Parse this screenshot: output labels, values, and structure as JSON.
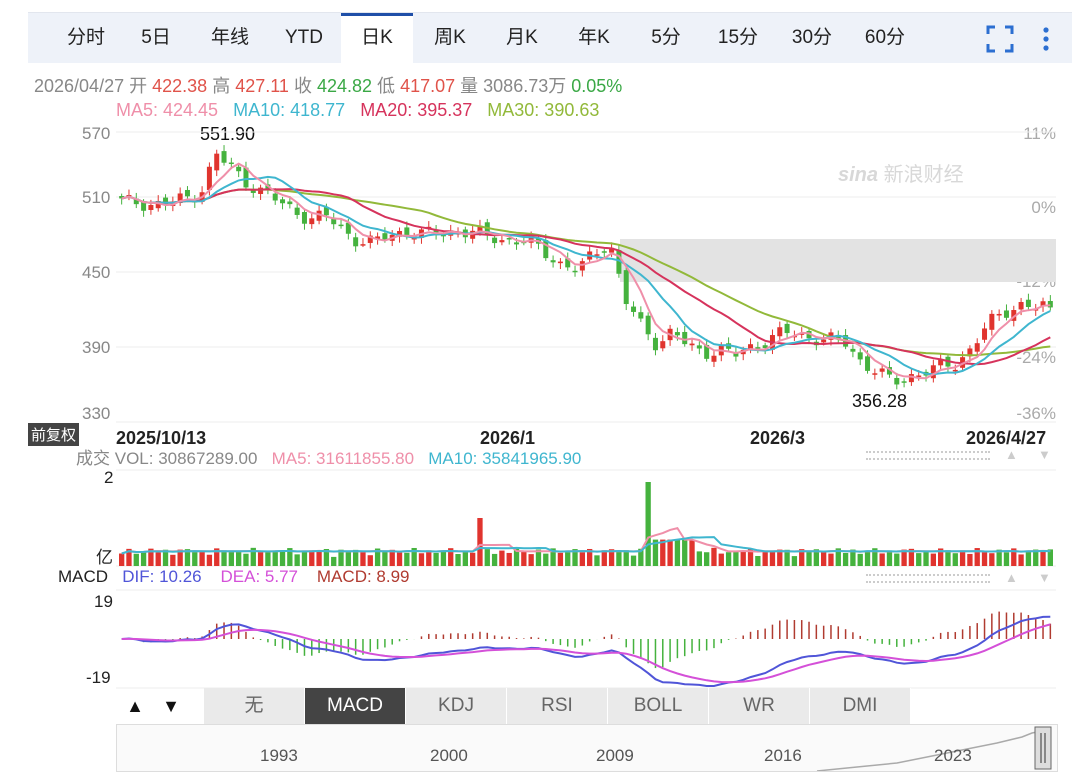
{
  "tabs": [
    "分时",
    "5日",
    "年线",
    "YTD",
    "日K",
    "周K",
    "月K",
    "年K",
    "5分",
    "15分",
    "30分",
    "60分"
  ],
  "active_tab": "日K",
  "icons": {
    "fullscreen": "fullscreen-icon",
    "more": "more-vert-icon"
  },
  "quote": {
    "date": "2026/04/27",
    "open_label": "开",
    "open": "422.38",
    "high_label": "高",
    "high": "427.11",
    "close_label": "收",
    "close": "424.82",
    "low_label": "低",
    "low": "417.07",
    "vol_label": "量",
    "vol": "3086.73万",
    "change": "0.05%"
  },
  "ma": {
    "ma5": "MA5: 424.45",
    "ma10": "MA10: 418.77",
    "ma20": "MA20: 395.37",
    "ma30": "MA30: 390.63"
  },
  "colors": {
    "ma5": "#ef8fa9",
    "ma10": "#3fb6cf",
    "ma20": "#d6335c",
    "ma30": "#92b93a",
    "up": "#e0342e",
    "down": "#45b23e",
    "dif": "#5055d8",
    "dea": "#d450d8"
  },
  "watermark": "新浪财经",
  "price_axis": {
    "labels": [
      "570",
      "510",
      "450",
      "390",
      "330"
    ],
    "pct_labels": [
      "11%",
      "0%",
      "-12%",
      "-24%",
      "-36%"
    ],
    "high_marker": "551.90",
    "low_marker": "356.28"
  },
  "adjust_label": "前复权",
  "date_labels": [
    "2025/10/13",
    "2026/1",
    "2026/3",
    "2026/4/27"
  ],
  "volume": {
    "title": "成交",
    "vol": "VOL: 30867289.00",
    "ma5": "MA5: 31611855.80",
    "ma10": "MA10: 35841965.90",
    "axis_top": "2",
    "axis_unit": "亿"
  },
  "macd": {
    "title": "MACD",
    "dif": "DIF: 10.26",
    "dea": "DEA: 5.77",
    "macd": "MACD: 8.99",
    "axis_top": "19",
    "axis_bottom": "-19"
  },
  "indicators": [
    "无",
    "MACD",
    "KDJ",
    "RSI",
    "BOLL",
    "WR",
    "DMI"
  ],
  "active_indicator": "MACD",
  "nav": {
    "up_label": "▲",
    "down_label": "▼"
  },
  "timeline_years": [
    "1993",
    "2000",
    "2009",
    "2016",
    "2023"
  ],
  "chart_data": {
    "type": "candlestick",
    "price_range": [
      330,
      570
    ],
    "high": 551.9,
    "low": 356.28,
    "close_path": [
      512,
      512,
      510,
      511,
      515,
      520,
      551,
      540,
      528,
      520,
      512,
      505,
      498,
      500,
      490,
      480,
      478,
      485,
      488,
      485,
      486,
      488,
      487,
      485,
      482,
      480,
      478,
      470,
      460,
      455,
      470,
      480,
      430,
      410,
      395,
      405,
      392,
      388,
      390,
      385,
      392,
      398,
      404,
      402,
      400,
      398,
      395,
      380,
      372,
      362,
      368,
      372,
      375,
      378,
      392,
      410,
      420,
      428,
      425,
      424.82
    ]
  }
}
